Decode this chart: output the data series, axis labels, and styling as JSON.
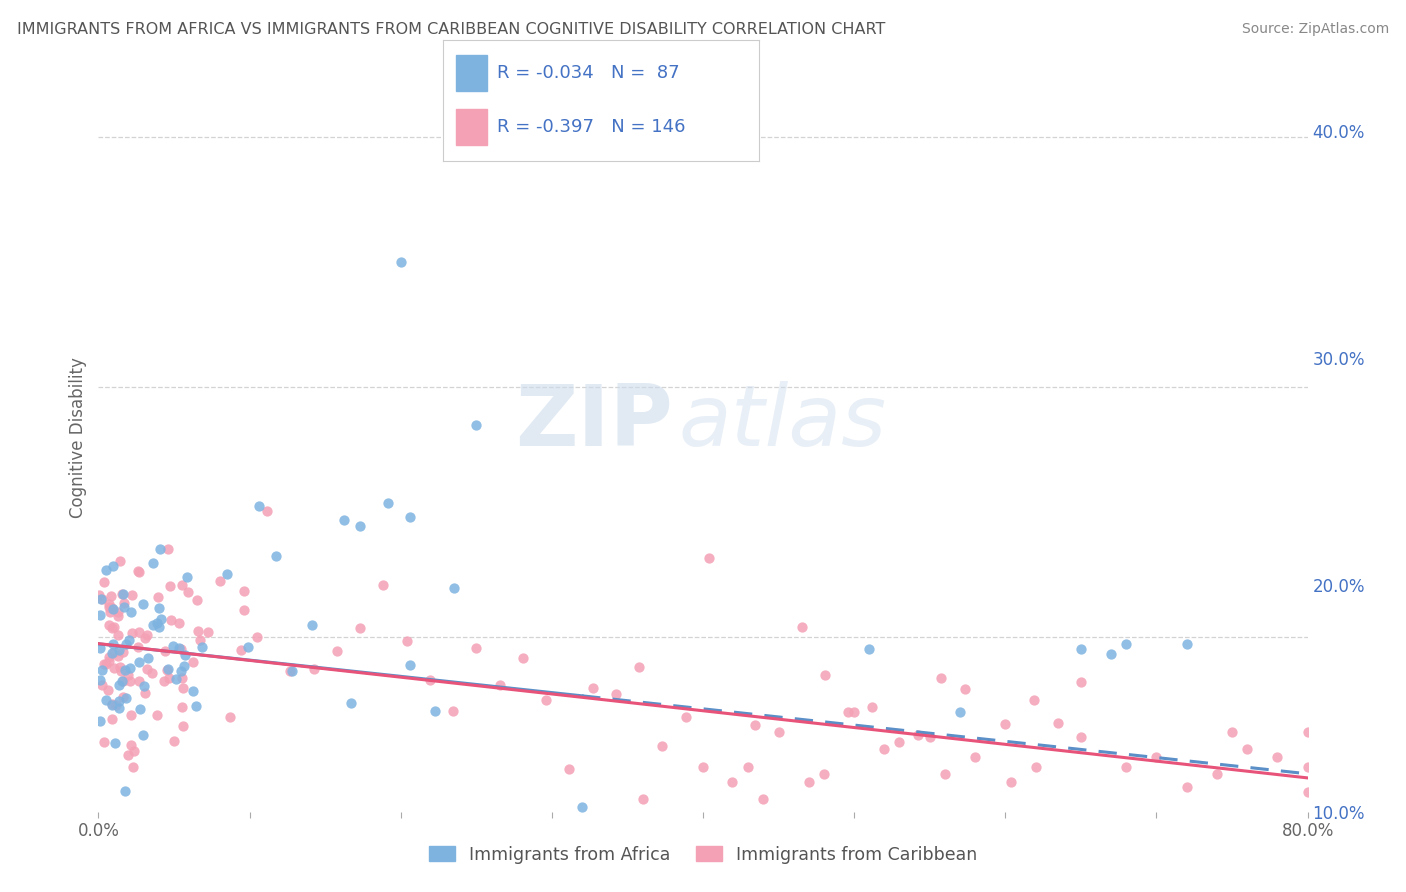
{
  "title": "IMMIGRANTS FROM AFRICA VS IMMIGRANTS FROM CARIBBEAN COGNITIVE DISABILITY CORRELATION CHART",
  "source": "Source: ZipAtlas.com",
  "ylabel": "Cognitive Disability",
  "xlim": [
    0.0,
    0.8
  ],
  "ylim": [
    0.13,
    0.43
  ],
  "series1_label": "Immigrants from Africa",
  "series2_label": "Immigrants from Caribbean",
  "series1_color": "#7eb3e0",
  "series2_color": "#f4a0b5",
  "series1_line_color": "#5b8fc7",
  "series2_line_color": "#e8537a",
  "R1": -0.034,
  "N1": 87,
  "R2": -0.397,
  "N2": 146,
  "legend_text_color": "#4472c4",
  "watermark": "ZIPatlas",
  "background_color": "#ffffff",
  "grid_color": "#c8c8c8",
  "ytick_positions": [
    0.1,
    0.2,
    0.3,
    0.4
  ],
  "ytick_labels": [
    "10.0%",
    "20.0%",
    "30.0%",
    "40.0%"
  ],
  "xtick_positions": [
    0.0,
    0.1,
    0.2,
    0.3,
    0.4,
    0.5,
    0.6,
    0.7,
    0.8
  ],
  "xtick_labels": [
    "0.0%",
    "",
    "",
    "",
    "",
    "",
    "",
    "",
    "80.0%"
  ]
}
